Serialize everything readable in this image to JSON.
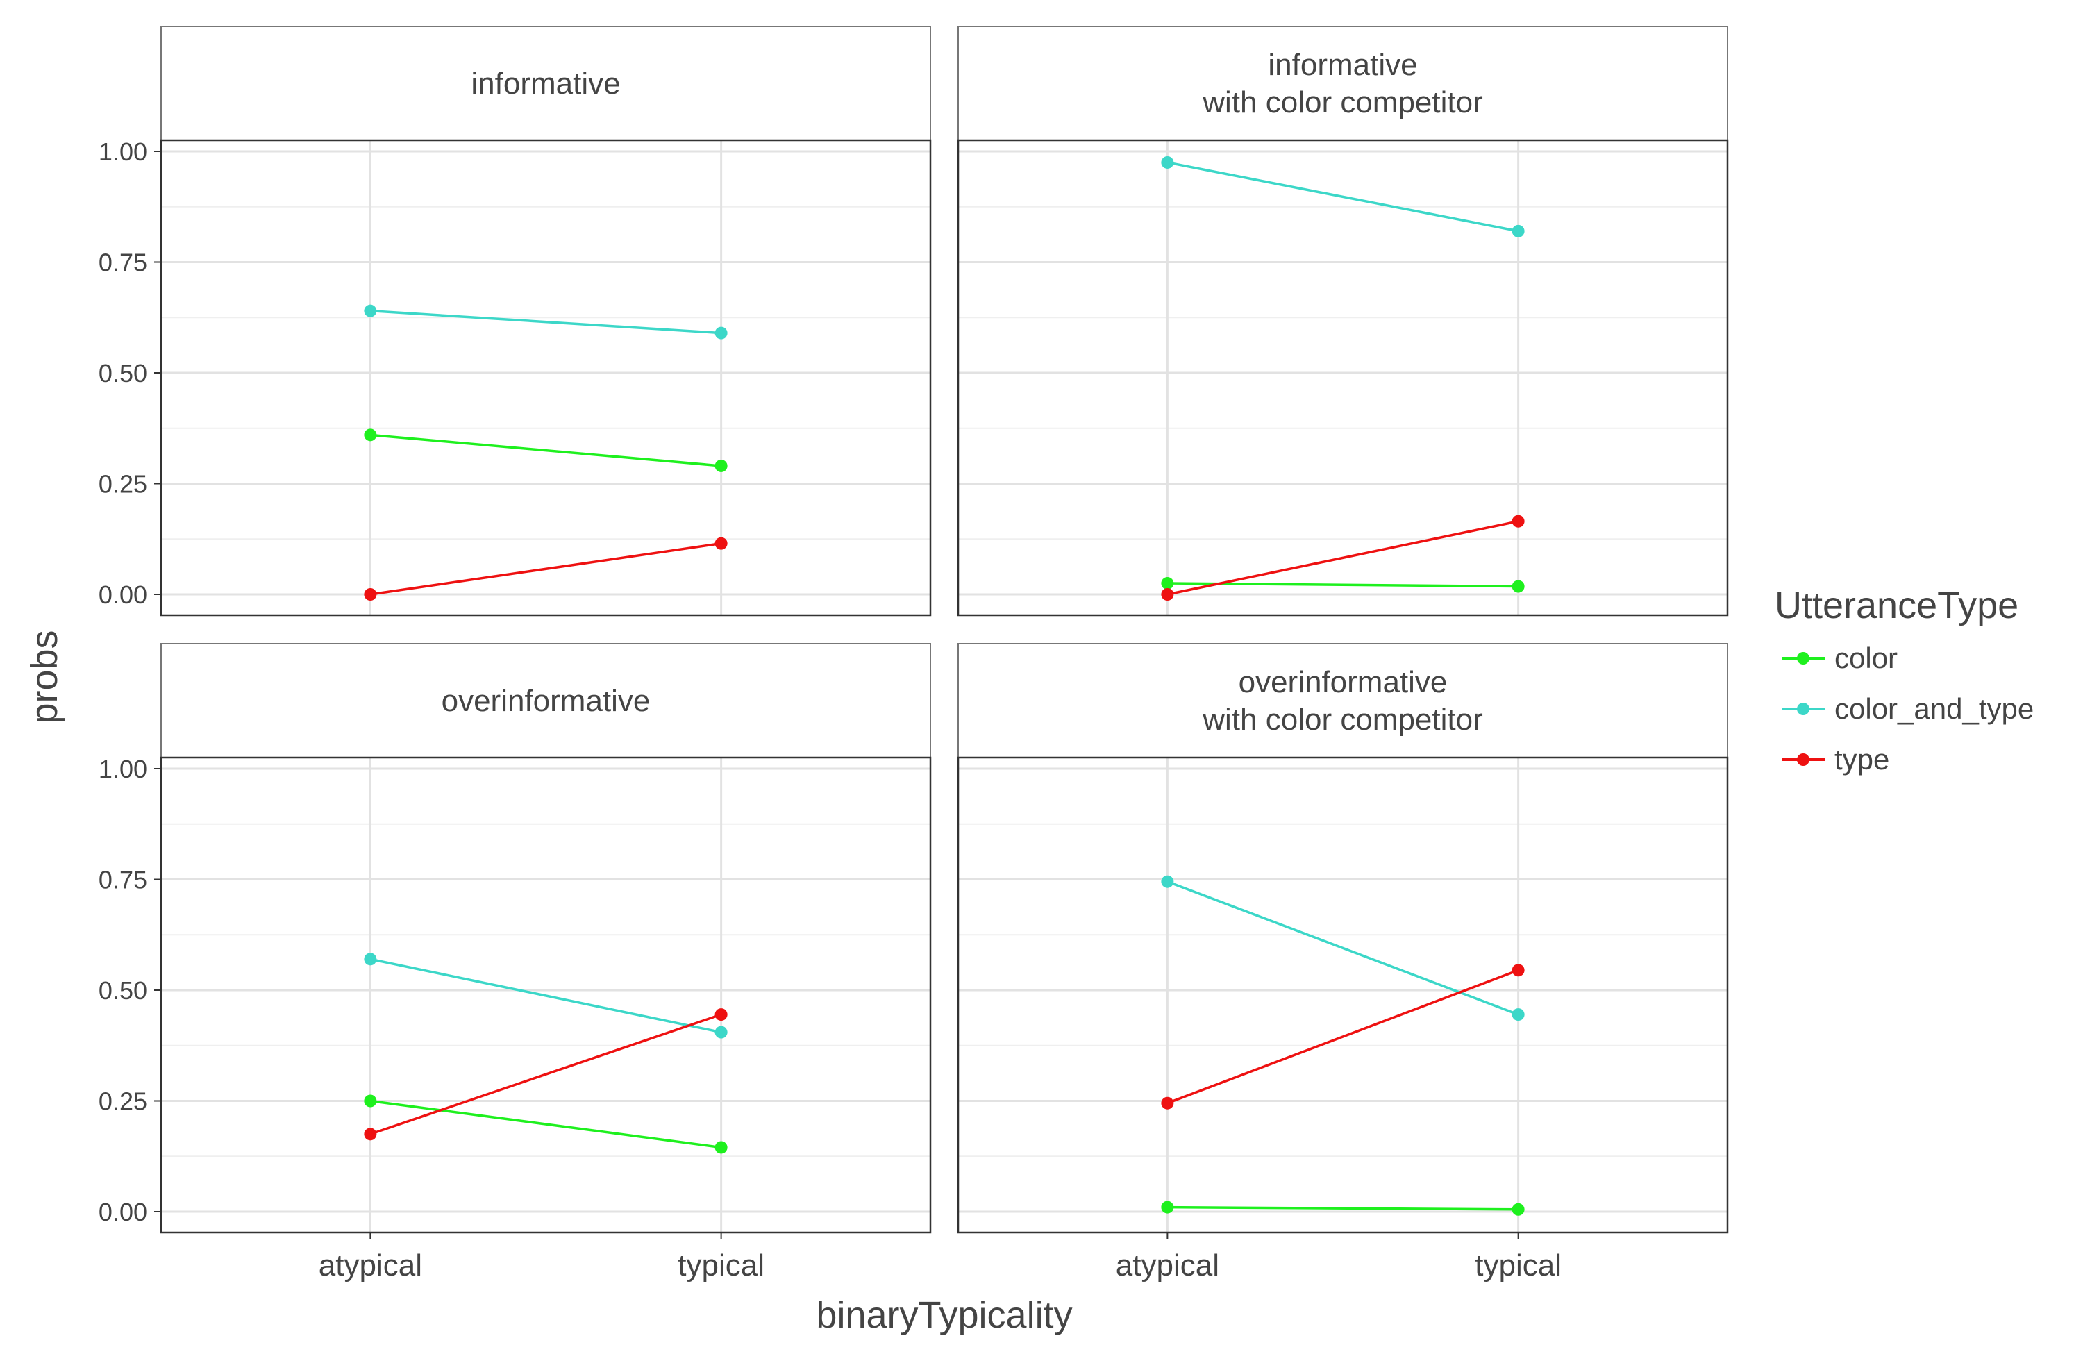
{
  "chart_data": {
    "type": "line",
    "facet_layout": "2x2",
    "categories": [
      "atypical",
      "typical"
    ],
    "xlabel": "binaryTypicality",
    "ylabel": "probs",
    "ylim": [
      0,
      1
    ],
    "yticks": [
      0,
      0.25,
      0.5,
      0.75,
      1
    ],
    "ytick_labels": [
      "0.00",
      "0.25",
      "0.50",
      "0.75",
      "1.00"
    ],
    "grid": true,
    "legend": {
      "title": "UtteranceType",
      "position": "right",
      "entries": [
        {
          "key": "color",
          "label": "color",
          "color": "#1EF01E"
        },
        {
          "key": "color_and_type",
          "label": "color_and_type",
          "color": "#3CD7C8"
        },
        {
          "key": "type",
          "label": "type",
          "color": "#EE1111"
        }
      ]
    },
    "panels": [
      {
        "title_lines": [
          "informative"
        ],
        "series": [
          {
            "key": "color",
            "values": [
              0.36,
              0.29
            ]
          },
          {
            "key": "color_and_type",
            "values": [
              0.64,
              0.59
            ]
          },
          {
            "key": "type",
            "values": [
              0.0,
              0.115
            ]
          }
        ]
      },
      {
        "title_lines": [
          "informative",
          "with color competitor"
        ],
        "series": [
          {
            "key": "color",
            "values": [
              0.025,
              0.018
            ]
          },
          {
            "key": "color_and_type",
            "values": [
              0.975,
              0.82
            ]
          },
          {
            "key": "type",
            "values": [
              0.0,
              0.165
            ]
          }
        ]
      },
      {
        "title_lines": [
          "overinformative"
        ],
        "series": [
          {
            "key": "color",
            "values": [
              0.25,
              0.145
            ]
          },
          {
            "key": "color_and_type",
            "values": [
              0.57,
              0.405
            ]
          },
          {
            "key": "type",
            "values": [
              0.175,
              0.445
            ]
          }
        ]
      },
      {
        "title_lines": [
          "overinformative",
          "with color competitor"
        ],
        "series": [
          {
            "key": "color",
            "values": [
              0.01,
              0.005
            ]
          },
          {
            "key": "color_and_type",
            "values": [
              0.745,
              0.445
            ]
          },
          {
            "key": "type",
            "values": [
              0.245,
              0.545
            ]
          }
        ]
      }
    ]
  }
}
